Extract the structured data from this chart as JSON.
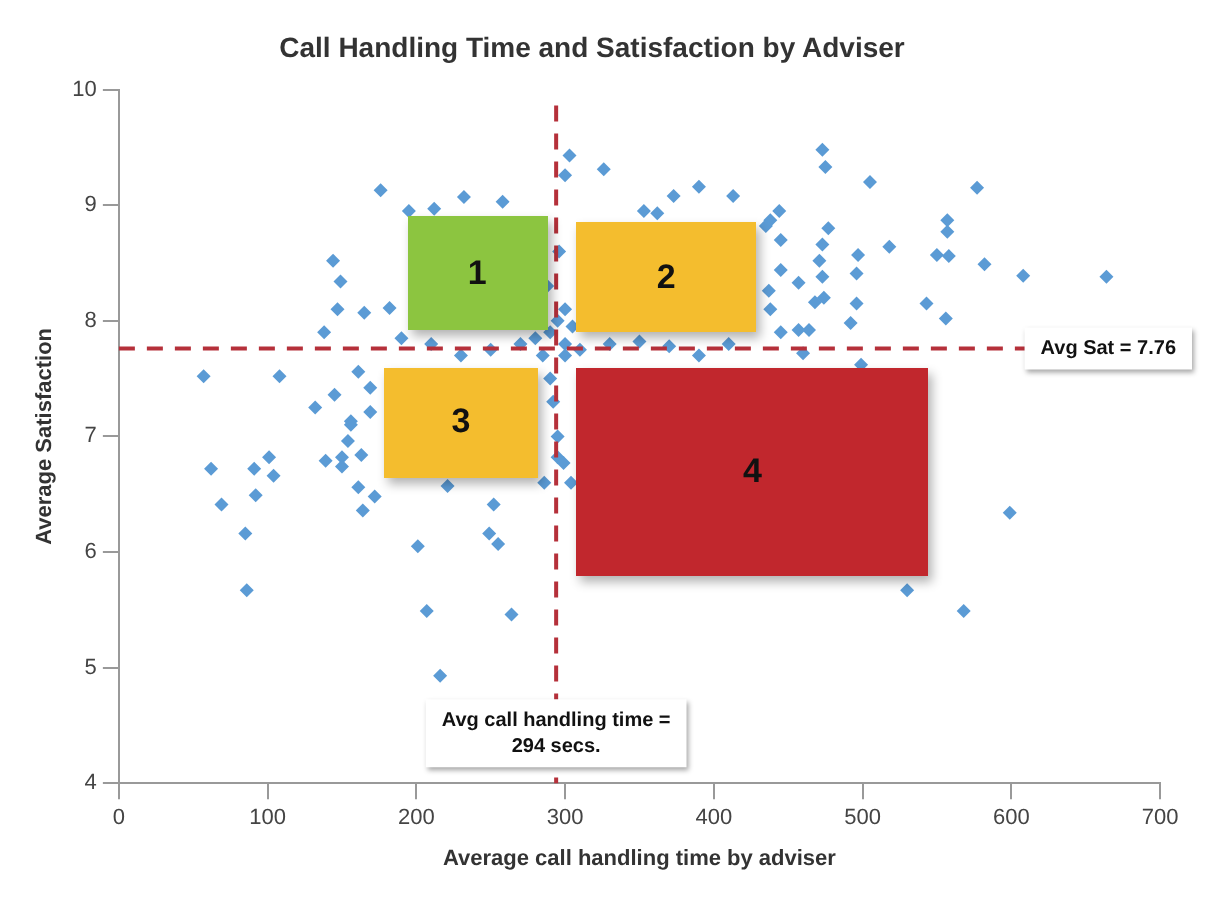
{
  "chart_data": {
    "type": "scatter",
    "title": "Call Handling Time and Satisfaction by Adviser",
    "xlabel": "Average call handling time by adviser",
    "ylabel": "Average Satisfaction",
    "x": [
      176,
      195,
      212,
      232,
      258,
      303,
      326,
      300,
      144,
      149,
      147,
      165,
      138,
      182,
      57,
      108,
      132,
      145,
      161,
      169,
      156,
      169,
      290,
      295,
      285,
      300,
      280,
      270,
      250,
      230,
      210,
      190,
      300,
      310,
      330,
      350,
      370,
      390,
      410,
      290,
      292,
      295,
      288,
      296,
      300,
      305,
      473,
      475,
      505,
      577,
      373,
      390,
      413,
      353,
      362,
      438,
      444,
      435,
      445,
      477,
      473,
      471,
      473,
      497,
      496,
      518,
      557,
      557,
      550,
      558,
      582,
      608,
      664,
      445,
      457,
      437,
      468,
      474,
      496,
      543,
      556,
      492,
      445,
      457,
      464,
      438,
      499,
      460,
      62,
      91,
      101,
      104,
      69,
      92,
      85,
      86,
      139,
      150,
      150,
      163,
      161,
      164,
      172,
      154,
      156,
      201,
      252,
      249,
      255,
      207,
      264,
      216,
      221,
      295,
      299,
      286,
      304,
      599,
      530,
      568
    ],
    "values": [
      9.13,
      8.95,
      8.97,
      9.07,
      9.03,
      9.43,
      9.31,
      9.26,
      8.52,
      8.34,
      8.1,
      8.07,
      7.9,
      8.11,
      7.52,
      7.52,
      7.25,
      7.36,
      7.56,
      7.42,
      7.13,
      7.21,
      7.9,
      8.0,
      7.7,
      7.8,
      7.85,
      7.8,
      7.75,
      7.7,
      7.8,
      7.85,
      7.7,
      7.75,
      7.8,
      7.82,
      7.78,
      7.7,
      7.8,
      7.5,
      7.3,
      7.0,
      8.3,
      8.6,
      8.1,
      7.95,
      9.48,
      9.33,
      9.2,
      9.15,
      9.08,
      9.16,
      9.08,
      8.95,
      8.93,
      8.87,
      8.95,
      8.82,
      8.7,
      8.8,
      8.66,
      8.52,
      8.38,
      8.57,
      8.41,
      8.64,
      8.87,
      8.77,
      8.57,
      8.56,
      8.49,
      8.39,
      8.38,
      8.44,
      8.33,
      8.26,
      8.16,
      8.2,
      8.15,
      8.15,
      8.02,
      7.98,
      7.9,
      7.92,
      7.92,
      8.1,
      7.62,
      7.72,
      6.72,
      6.72,
      6.82,
      6.66,
      6.41,
      6.49,
      6.16,
      5.67,
      6.79,
      6.82,
      6.74,
      6.84,
      6.56,
      6.36,
      6.48,
      6.96,
      7.1,
      6.05,
      6.41,
      6.16,
      6.07,
      5.49,
      5.46,
      4.93,
      6.57,
      6.82,
      6.77,
      6.6,
      6.6,
      6.34,
      5.67,
      5.49
    ],
    "color": "#5b9bd5",
    "marker": "diamond",
    "xlim": [
      0,
      700
    ],
    "xticks": [
      0,
      100,
      200,
      300,
      400,
      500,
      600,
      700
    ],
    "ylim": [
      4,
      10
    ],
    "yticks": [
      4,
      5,
      6,
      7,
      8,
      9,
      10
    ],
    "grid": false,
    "legend": false,
    "ref_lines": [
      {
        "axis": "x",
        "value": 294,
        "label": "Avg call handling time = 294 secs.",
        "color": "#b5303a",
        "line_style": "dashed"
      },
      {
        "axis": "y",
        "value": 7.76,
        "label": "Avg Sat = 7.76",
        "color": "#b5303a",
        "line_style": "dashed"
      }
    ],
    "annotations": [
      "1",
      "2",
      "3",
      "4"
    ]
  }
}
